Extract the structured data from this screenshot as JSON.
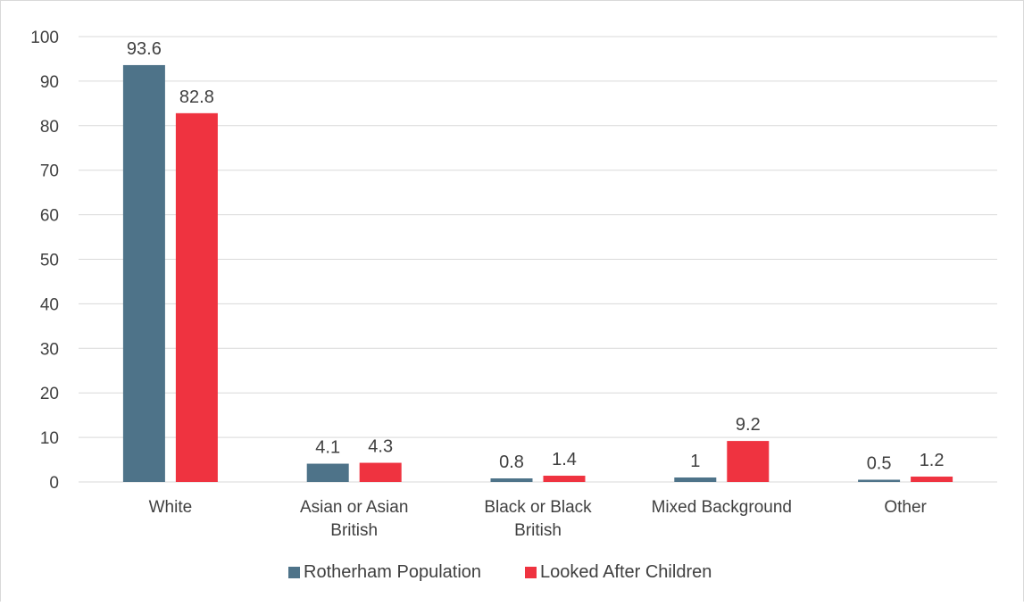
{
  "chart_data": {
    "type": "bar",
    "title": "",
    "xlabel": "",
    "ylabel": "",
    "categories": [
      [
        "White"
      ],
      [
        "Asian or Asian",
        "British"
      ],
      [
        "Black or Black",
        "British"
      ],
      [
        "Mixed Background"
      ],
      [
        "Other"
      ]
    ],
    "series": [
      {
        "name": "Rotherham Population",
        "color": "#4e7389",
        "values": [
          93.6,
          4.1,
          0.8,
          1,
          0.5
        ]
      },
      {
        "name": "Looked After Children",
        "color": "#ef3340",
        "values": [
          82.8,
          4.3,
          1.4,
          9.2,
          1.2
        ]
      }
    ],
    "ylim": [
      0,
      100
    ],
    "yticks": [
      0,
      10,
      20,
      30,
      40,
      50,
      60,
      70,
      80,
      90,
      100
    ],
    "grid": true,
    "legend_position": "bottom",
    "gridline_color": "#d9d9d9"
  }
}
